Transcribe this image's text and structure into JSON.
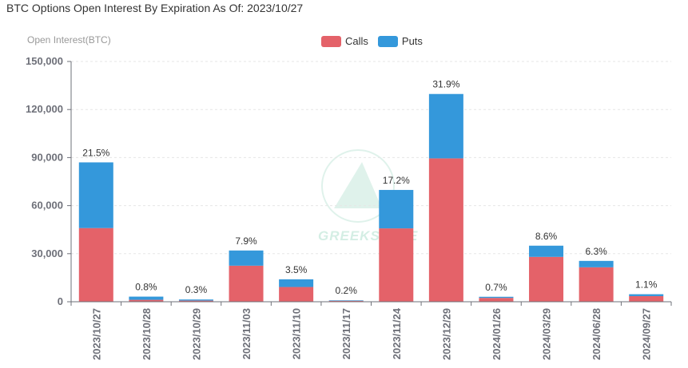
{
  "title": "BTC Options Open Interest By Expiration As Of: 2023/10/27",
  "watermark_text": "GREEKS.LIVE",
  "colors": {
    "calls": "#e46269",
    "puts": "#3498db",
    "axis": "#6e7079",
    "grid": "#e6e6e6"
  },
  "chart_data": {
    "type": "bar",
    "stacked": true,
    "title": "BTC Options Open Interest By Expiration As Of: 2023/10/27",
    "ylabel": "Open Interest(BTC)",
    "xlabel": "",
    "ylim": [
      0,
      150000
    ],
    "yticks": [
      0,
      30000,
      60000,
      90000,
      120000,
      150000
    ],
    "ytick_labels": [
      "0",
      "30,000",
      "60,000",
      "90,000",
      "120,000",
      "150,000"
    ],
    "categories": [
      "2023/10/27",
      "2023/10/28",
      "2023/10/29",
      "2023/11/03",
      "2023/11/10",
      "2023/11/17",
      "2023/11/24",
      "2023/12/29",
      "2024/01/26",
      "2024/03/29",
      "2024/06/28",
      "2024/09/27"
    ],
    "series": [
      {
        "name": "Calls",
        "values": [
          46000,
          1200,
          700,
          22500,
          9200,
          600,
          45800,
          89500,
          2400,
          28000,
          21500,
          3500
        ]
      },
      {
        "name": "Puts",
        "values": [
          41000,
          2000,
          700,
          9500,
          4800,
          300,
          24000,
          40200,
          700,
          7000,
          4000,
          1200
        ]
      }
    ],
    "data_labels": [
      "21.5%",
      "0.8%",
      "0.3%",
      "7.9%",
      "3.5%",
      "0.2%",
      "17.2%",
      "31.9%",
      "0.7%",
      "8.6%",
      "6.3%",
      "1.1%"
    ],
    "legend": {
      "position": "top-center",
      "entries": [
        "Calls",
        "Puts"
      ]
    }
  }
}
